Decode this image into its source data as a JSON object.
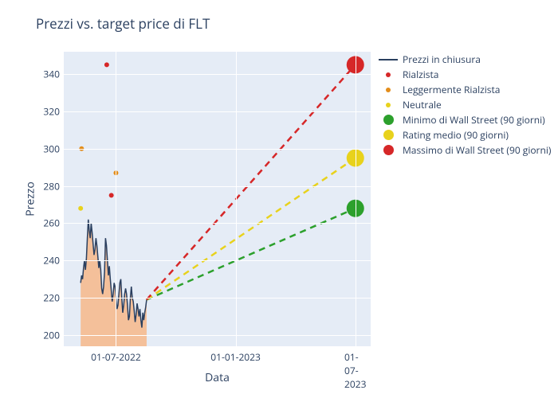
{
  "title": "Prezzi vs. target price di FLT",
  "x_label": "Data",
  "y_label": "Prezzo",
  "ylim": [
    194,
    352
  ],
  "y_ticks": [
    200,
    220,
    240,
    260,
    280,
    300,
    320,
    340
  ],
  "x_ticks": [
    {
      "label": "01-07-2022",
      "t": 0.17
    },
    {
      "label": "01-01-2023",
      "t": 0.56
    },
    {
      "label": "01-07-2023",
      "t": 0.95
    }
  ],
  "colors": {
    "bg": "#e5ecf6",
    "grid": "#ffffff",
    "text": "#2a3f5f",
    "line": "#2a3f5f",
    "area_fill": "#f7b98a",
    "rialzista": "#d62728",
    "legg_rialzista": "#e38d1b",
    "neutrale": "#e8d21c",
    "min": "#2ca02c",
    "medio": "#e8d21c",
    "max": "#d62728"
  },
  "legend": [
    {
      "label": "Prezzi in chiusura",
      "kind": "line",
      "color": "#2a3f5f",
      "w": 2
    },
    {
      "label": "Rialzista",
      "kind": "dot",
      "color": "#d62728",
      "size": 6
    },
    {
      "label": "Leggermente Rialzista",
      "kind": "dot",
      "color": "#e38d1b",
      "size": 6
    },
    {
      "label": "Neutrale",
      "kind": "dot",
      "color": "#e8d21c",
      "size": 6
    },
    {
      "label": "Minimo di Wall Street (90 giorni)",
      "kind": "dot",
      "color": "#2ca02c",
      "size": 13
    },
    {
      "label": "Rating medio (90 giorni)",
      "kind": "dot",
      "color": "#e8d21c",
      "size": 13
    },
    {
      "label": "Massimo di Wall Street (90 giorni)",
      "kind": "dot",
      "color": "#d62728",
      "size": 13
    }
  ],
  "area_series": {
    "t_start": 0.055,
    "t_end": 0.27,
    "values": [
      228,
      232,
      230,
      236,
      240,
      235,
      241,
      252,
      262,
      256,
      252,
      260,
      255,
      249,
      243,
      246,
      252,
      248,
      242,
      236,
      240,
      235,
      225,
      222,
      226,
      234,
      252,
      248,
      240,
      232,
      237,
      230,
      224,
      218,
      222,
      228,
      226,
      220,
      214,
      216,
      222,
      228,
      230,
      220,
      212,
      216,
      222,
      225,
      222,
      216,
      208,
      210,
      220,
      226,
      220,
      218,
      213,
      207,
      211,
      217,
      214,
      210,
      214,
      208,
      204,
      212,
      208,
      212,
      215,
      219
    ]
  },
  "scatter": [
    {
      "t": 0.058,
      "y": 300,
      "color": "#e38d1b",
      "size": 6
    },
    {
      "t": 0.055,
      "y": 268,
      "color": "#e8d21c",
      "size": 6
    },
    {
      "t": 0.14,
      "y": 345,
      "color": "#d62728",
      "size": 6
    },
    {
      "t": 0.155,
      "y": 275,
      "color": "#d62728",
      "size": 6
    },
    {
      "t": 0.17,
      "y": 287,
      "color": "#e38d1b",
      "size": 6
    }
  ],
  "projections": [
    {
      "target_y": 268,
      "color": "#2ca02c",
      "endpoint_size": 11
    },
    {
      "target_y": 295,
      "color": "#e8d21c",
      "endpoint_size": 11
    },
    {
      "target_y": 345,
      "color": "#d62728",
      "endpoint_size": 11
    }
  ],
  "proj_start": {
    "t": 0.27,
    "y": 219
  },
  "proj_end_t": 0.95
}
